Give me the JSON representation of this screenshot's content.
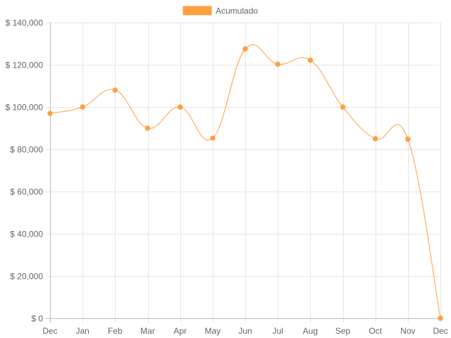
{
  "chart_data": {
    "type": "line",
    "categories": [
      "Dec",
      "Jan",
      "Feb",
      "Mar",
      "Apr",
      "May",
      "Jun",
      "Jul",
      "Aug",
      "Sep",
      "Oct",
      "Nov",
      "Dec"
    ],
    "series": [
      {
        "name": "Acumulado",
        "color": "#ff9f40",
        "values": [
          97000,
          100000,
          108000,
          90000,
          100000,
          85300,
          127500,
          120300,
          122200,
          100000,
          85000,
          84800,
          0
        ]
      }
    ],
    "ylim": [
      0,
      140000
    ],
    "yticks": [
      0,
      20000,
      40000,
      60000,
      80000,
      100000,
      120000,
      140000
    ],
    "ytick_labels": [
      "$ 0",
      "$ 20,000",
      "$ 40,000",
      "$ 60,000",
      "$ 80,000",
      "$ 100,000",
      "$ 120,000",
      "$ 140,000"
    ],
    "grid": true,
    "legend_position": "top",
    "title": "",
    "xlabel": "",
    "ylabel": ""
  }
}
